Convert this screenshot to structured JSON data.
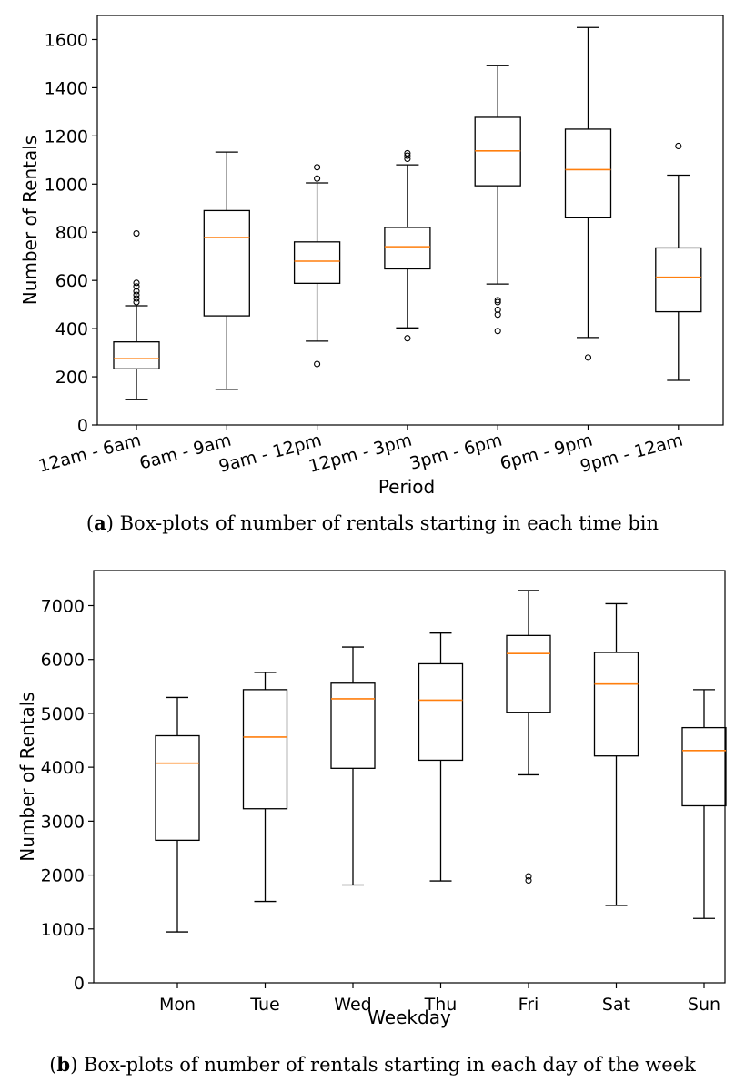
{
  "captions": {
    "a_letter": "a",
    "a_text": " Box-plots of number of rentals starting in each time bin",
    "b_letter": "b",
    "b_text": " Box-plots of number of rentals starting in each day of the week"
  },
  "colors": {
    "box": "#000000",
    "median": "#ff7f0e",
    "background": "#ffffff"
  },
  "chart_data": [
    {
      "type": "box",
      "title": "",
      "xlabel": "Period",
      "ylabel": "Number of Rentals",
      "ylim": [
        0,
        1700
      ],
      "yticks": [
        0,
        200,
        400,
        600,
        800,
        1000,
        1200,
        1400,
        1600
      ],
      "categories": [
        "12am - 6am",
        "6am - 9am",
        "9am - 12pm",
        "12pm - 3pm",
        "3pm - 6pm",
        "6pm - 9pm",
        "9pm - 12am"
      ],
      "boxes": [
        {
          "whisker_low": 105,
          "q1": 233,
          "median": 275,
          "q3": 345,
          "whisker_high": 495,
          "outliers": [
            510,
            525,
            540,
            555,
            575,
            590,
            795
          ]
        },
        {
          "whisker_low": 148,
          "q1": 453,
          "median": 778,
          "q3": 890,
          "whisker_high": 1133,
          "outliers": []
        },
        {
          "whisker_low": 348,
          "q1": 588,
          "median": 680,
          "q3": 760,
          "whisker_high": 1005,
          "outliers": [
            253,
            1023,
            1070
          ]
        },
        {
          "whisker_low": 403,
          "q1": 648,
          "median": 740,
          "q3": 820,
          "whisker_high": 1080,
          "outliers": [
            360,
            1105,
            1118,
            1128
          ]
        },
        {
          "whisker_low": 585,
          "q1": 993,
          "median": 1138,
          "q3": 1277,
          "whisker_high": 1493,
          "outliers": [
            390,
            458,
            478,
            510,
            518
          ]
        },
        {
          "whisker_low": 363,
          "q1": 860,
          "median": 1060,
          "q3": 1228,
          "whisker_high": 1650,
          "outliers": [
            280
          ]
        },
        {
          "whisker_low": 185,
          "q1": 470,
          "median": 613,
          "q3": 735,
          "whisker_high": 1037,
          "outliers": [
            1158
          ]
        }
      ]
    },
    {
      "type": "box",
      "title": "",
      "xlabel": "Weekday",
      "ylabel": "Number of Rentals",
      "ylim": [
        0,
        7650
      ],
      "yticks": [
        0,
        1000,
        2000,
        3000,
        4000,
        5000,
        6000,
        7000
      ],
      "categories": [
        "Mon",
        "Tue",
        "Wed",
        "Thu",
        "Fri",
        "Sat",
        "Sun"
      ],
      "boxes": [
        {
          "whisker_low": 945,
          "q1": 2645,
          "median": 4075,
          "q3": 4585,
          "whisker_high": 5295,
          "outliers": []
        },
        {
          "whisker_low": 1510,
          "q1": 3230,
          "median": 4560,
          "q3": 5440,
          "whisker_high": 5760,
          "outliers": []
        },
        {
          "whisker_low": 1815,
          "q1": 3980,
          "median": 5270,
          "q3": 5560,
          "whisker_high": 6230,
          "outliers": []
        },
        {
          "whisker_low": 1890,
          "q1": 4130,
          "median": 5245,
          "q3": 5920,
          "whisker_high": 6490,
          "outliers": []
        },
        {
          "whisker_low": 3860,
          "q1": 5020,
          "median": 6110,
          "q3": 6445,
          "whisker_high": 7280,
          "outliers": [
            1900,
            1975
          ]
        },
        {
          "whisker_low": 1435,
          "q1": 4210,
          "median": 5545,
          "q3": 6130,
          "whisker_high": 7035,
          "outliers": []
        },
        {
          "whisker_low": 1195,
          "q1": 3285,
          "median": 4310,
          "q3": 4735,
          "whisker_high": 5440,
          "outliers": []
        }
      ]
    }
  ]
}
